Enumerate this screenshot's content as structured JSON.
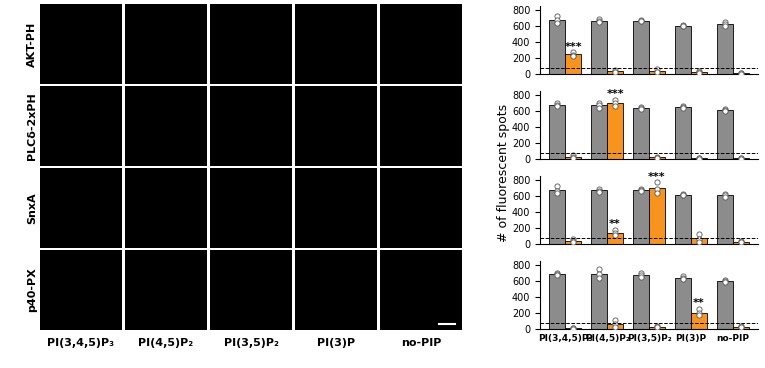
{
  "images": {
    "rows": [
      "AKT-PH",
      "PLCδ-2xPH",
      "SnxA",
      "p40-PX"
    ],
    "columns": [
      "PI(3,4,5)P₃",
      "PI(4,5)P₂",
      "PI(3,5)P₂",
      "PI(3)P",
      "no-PIP"
    ]
  },
  "ylabel": "# of fluorescent spots",
  "chart_data": [
    {
      "type": "bar",
      "categories": [
        "PI(3,4,5)P₃",
        "PI(4,5)P₂",
        "PI(3,5)P₂",
        "PI(3)P",
        "no-PIP"
      ],
      "ylim": [
        0,
        850
      ],
      "yticks": [
        0,
        200,
        400,
        600,
        800
      ],
      "tick_labels": "y",
      "reference_line": 75,
      "series": [
        {
          "color": "#8c8c8c",
          "values": [
            680,
            665,
            665,
            600,
            625
          ],
          "points": [
            [
              720,
              670,
              640
            ],
            [
              690,
              660,
              650
            ],
            [
              670,
              660,
              660
            ],
            [
              610,
              600,
              595
            ],
            [
              650,
              620,
              600
            ]
          ]
        },
        {
          "color": "#f7941d",
          "values": [
            245,
            35,
            35,
            25,
            10
          ],
          "points": [
            [
              270,
              240,
              225
            ],
            [
              50,
              30,
              20
            ],
            [
              60,
              30,
              20
            ],
            [
              40,
              25,
              15
            ],
            [
              15,
              10,
              5
            ]
          ]
        }
      ],
      "annotations": [
        {
          "category": "PI(3,4,5)P₃",
          "text": "***"
        }
      ]
    },
    {
      "type": "bar",
      "categories": [
        "PI(3,4,5)P₃",
        "PI(4,5)P₂",
        "PI(3,5)P₂",
        "PI(3)P",
        "no-PIP"
      ],
      "ylim": [
        0,
        850
      ],
      "yticks": [
        0,
        200,
        400,
        600,
        800
      ],
      "tick_labels": "y",
      "reference_line": 75,
      "series": [
        {
          "color": "#8c8c8c",
          "values": [
            680,
            670,
            640,
            650,
            610
          ],
          "points": [
            [
              700,
              680,
              660
            ],
            [
              700,
              670,
              640
            ],
            [
              650,
              640,
              630
            ],
            [
              660,
              650,
              640
            ],
            [
              620,
              610,
              600
            ]
          ]
        },
        {
          "color": "#f7941d",
          "values": [
            30,
            700,
            20,
            10,
            10
          ],
          "points": [
            [
              50,
              25,
              15
            ],
            [
              740,
              700,
              660
            ],
            [
              30,
              15,
              10
            ],
            [
              15,
              10,
              5
            ],
            [
              15,
              10,
              5
            ]
          ]
        }
      ],
      "annotations": [
        {
          "category": "PI(4,5)P₂",
          "text": "***"
        }
      ]
    },
    {
      "type": "bar",
      "categories": [
        "PI(3,4,5)P₃",
        "PI(4,5)P₂",
        "PI(3,5)P₂",
        "PI(3)P",
        "no-PIP"
      ],
      "ylim": [
        0,
        850
      ],
      "yticks": [
        0,
        200,
        400,
        600,
        800
      ],
      "tick_labels": "y",
      "reference_line": 75,
      "series": [
        {
          "color": "#8c8c8c",
          "values": [
            670,
            670,
            675,
            615,
            610
          ],
          "points": [
            [
              720,
              660,
              640
            ],
            [
              690,
              660,
              650
            ],
            [
              690,
              670,
              660
            ],
            [
              620,
              615,
              610
            ],
            [
              630,
              610,
              590
            ]
          ]
        },
        {
          "color": "#f7941d",
          "values": [
            40,
            140,
            700,
            70,
            30
          ],
          "points": [
            [
              60,
              40,
              20
            ],
            [
              180,
              140,
              110
            ],
            [
              770,
              690,
              640
            ],
            [
              130,
              60,
              30
            ],
            [
              40,
              30,
              20
            ]
          ]
        }
      ],
      "annotations": [
        {
          "category": "PI(4,5)P₂",
          "text": "**"
        },
        {
          "category": "PI(3,5)P₂",
          "text": "***"
        }
      ]
    },
    {
      "type": "bar",
      "categories": [
        "PI(3,4,5)P₃",
        "PI(4,5)P₂",
        "PI(3,5)P₂",
        "PI(3)P",
        "no-PIP"
      ],
      "ylim": [
        0,
        850
      ],
      "yticks": [
        0,
        200,
        400,
        600,
        800
      ],
      "reference_line": 75,
      "series": [
        {
          "color": "#8c8c8c",
          "values": [
            690,
            690,
            675,
            640,
            600
          ],
          "points": [
            [
              700,
              690,
              680
            ],
            [
              750,
              690,
              640
            ],
            [
              700,
              670,
              650
            ],
            [
              660,
              640,
              620
            ],
            [
              610,
              600,
              590
            ]
          ]
        },
        {
          "color": "#f7941d",
          "values": [
            10,
            60,
            30,
            200,
            30
          ],
          "points": [
            [
              15,
              10,
              5
            ],
            [
              110,
              60,
              20
            ],
            [
              40,
              30,
              20
            ],
            [
              250,
              200,
              170
            ],
            [
              40,
              30,
              20
            ]
          ]
        }
      ],
      "annotations": [
        {
          "category": "PI(3)P",
          "text": "**"
        }
      ]
    }
  ]
}
